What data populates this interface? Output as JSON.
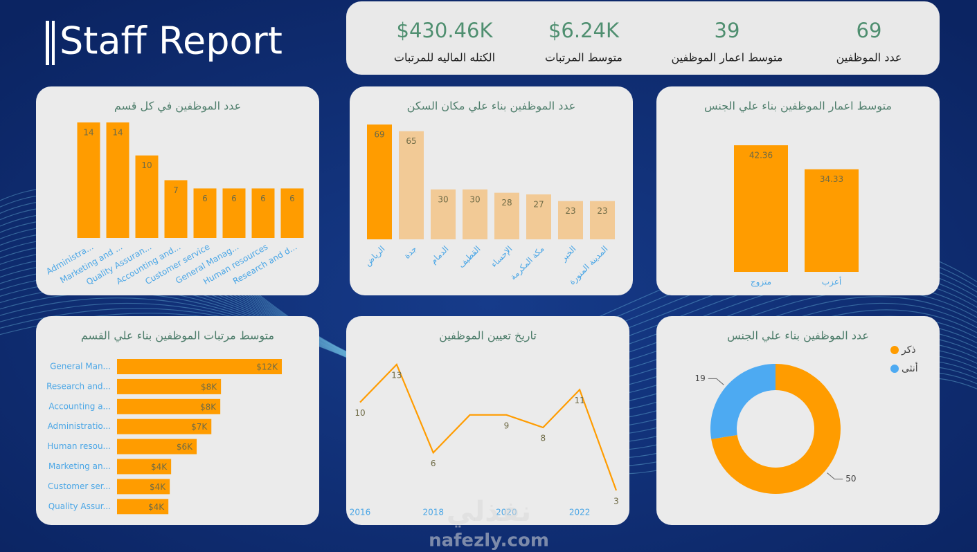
{
  "header": {
    "title": "Staff Report"
  },
  "kpis": [
    {
      "value": "69",
      "label": "عدد الموظفين"
    },
    {
      "value": "39",
      "label": "متوسط اعمار الموظفين"
    },
    {
      "value": "$6.24K",
      "label": "متوسط المرتبات"
    },
    {
      "value": "$430.46K",
      "label": "الكتله الماليه للمرتبات"
    }
  ],
  "chart_data": [
    {
      "type": "bar",
      "title": "عدد الموظفين في كل قسم",
      "categories": [
        "Administra...",
        "Marketing and ...",
        "Quality Assuran...",
        "Accounting and...",
        "Customer service",
        "General Manag...",
        "Human resources",
        "Research and d..."
      ],
      "values": [
        14,
        14,
        10,
        7,
        6,
        6,
        6,
        6
      ],
      "color": "#ff9c00"
    },
    {
      "type": "bar",
      "title": "عدد الموظفين بناء علي مكان السكن",
      "categories": [
        "الرياض",
        "جدة",
        "الدمام",
        "القطيف",
        "الإحساء",
        "مكة المكرمة",
        "الخبر",
        "المدينة المنورة"
      ],
      "values": [
        69,
        65,
        30,
        30,
        28,
        27,
        23,
        23
      ],
      "colors": [
        "#ff9c00",
        "#f2ca96",
        "#f2ca96",
        "#f2ca96",
        "#f2ca96",
        "#f2ca96",
        "#f2ca96",
        "#f2ca96"
      ]
    },
    {
      "type": "bar",
      "title": "متوسط اعمار الموظفين بناء علي الجنس",
      "categories": [
        "متزوج",
        "أعزب"
      ],
      "values": [
        42.36,
        34.33
      ],
      "color": "#ff9c00"
    },
    {
      "type": "hbar",
      "title": "متوسط مرتبات الموظفين بناء علي القسم",
      "categories": [
        "General Man...",
        "Research and...",
        "Accounting a...",
        "Administratio...",
        "Human resou...",
        "Marketing an...",
        "Customer ser...",
        "Quality Assur..."
      ],
      "values": [
        12000,
        7570,
        7520,
        6870,
        5800,
        3940,
        3840,
        3740
      ],
      "value_labels": [
        "$12K",
        "$8K",
        "$8K",
        "$7K",
        "$6K",
        "$4K",
        "$4K",
        "$4K"
      ],
      "color": "#ff9c00"
    },
    {
      "type": "line",
      "title": "تاريخ تعيين الموظفين",
      "x": [
        2016,
        2017,
        2018,
        2019,
        2020,
        2021,
        2022,
        2023
      ],
      "values": [
        10,
        13,
        6,
        9,
        9,
        8,
        11,
        3
      ],
      "value_labels": [
        "10",
        "13",
        "6",
        null,
        "9",
        "8",
        "11",
        "3"
      ],
      "xlim": [
        2016,
        2023
      ],
      "xticks": [
        2016,
        2018,
        2020,
        2022
      ],
      "color": "#ff9c00"
    },
    {
      "type": "donut",
      "title": "عدد الموظفين بناء علي الجنس",
      "categories": [
        "ذكر",
        "أنثى"
      ],
      "values": [
        50,
        19
      ],
      "colors": [
        "#ff9c00",
        "#4daaf2"
      ],
      "legend": "top-right"
    }
  ],
  "watermark": {
    "arabic": "نفذلي",
    "latin": "nafezly.com"
  }
}
